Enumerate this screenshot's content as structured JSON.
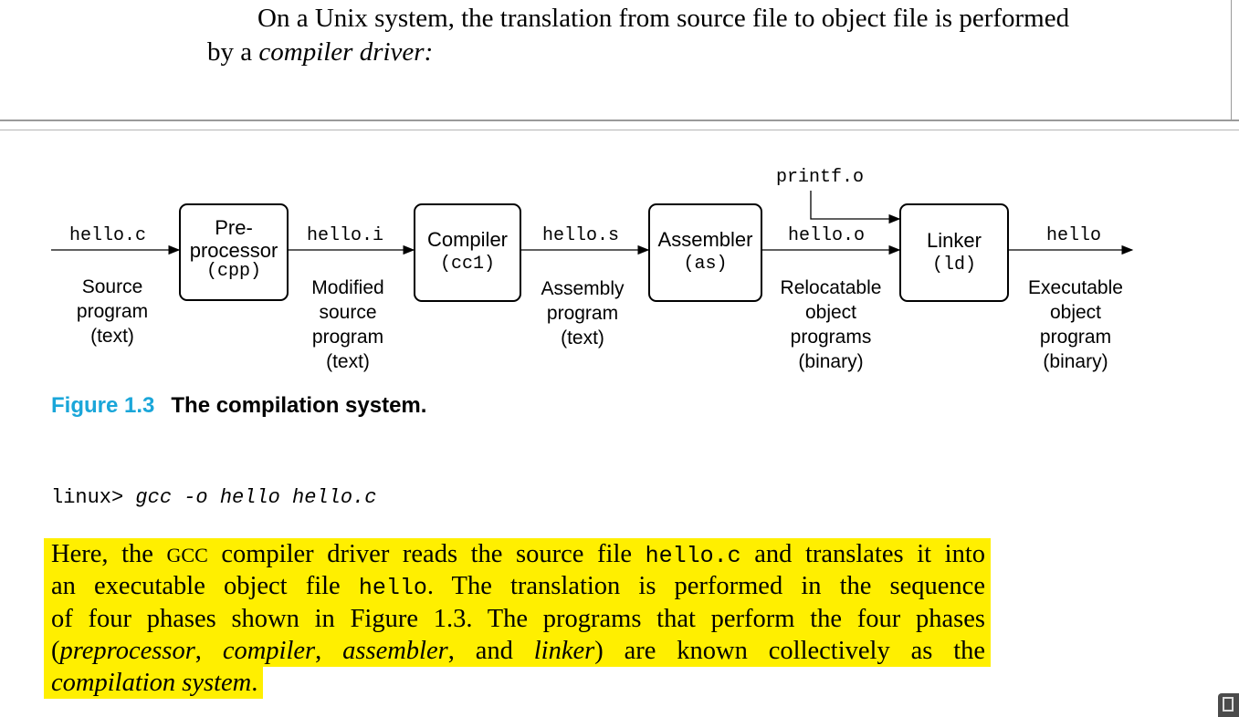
{
  "intro": {
    "line1": "On a Unix system, the translation from source file to object file is performed",
    "line2_prefix": "by a ",
    "line2_italic": "compiler driver:"
  },
  "figure": {
    "stages": [
      {
        "name": "Pre-",
        "name2": "processor",
        "tool": "(cpp)"
      },
      {
        "name": "Compiler",
        "tool": "(cc1)"
      },
      {
        "name": "Assembler",
        "tool": "(as)"
      },
      {
        "name": "Linker",
        "tool": "(ld)"
      }
    ],
    "files": [
      "hello.c",
      "hello.i",
      "hello.s",
      "hello.o",
      "hello"
    ],
    "extra_input": "printf.o",
    "descriptions": [
      [
        "Source",
        "program",
        "(text)"
      ],
      [
        "Modified",
        "source",
        "program",
        "(text)"
      ],
      [
        "Assembly",
        "program",
        "(text)"
      ],
      [
        "Relocatable",
        "object",
        "programs",
        "(binary)"
      ],
      [
        "Executable",
        "object",
        "program",
        "(binary)"
      ]
    ],
    "caption_number": "Figure 1.3",
    "caption_title": "The compilation system."
  },
  "command": {
    "prompt": "linux>",
    "typed": "gcc -o hello hello.c"
  },
  "paragraph": {
    "l1a": "Here, the ",
    "l1sc": "GCC",
    "l1b": " compiler driver reads the source file ",
    "l1code": "hello.c",
    "l1c": " and translates it into",
    "l2a": "an executable object file ",
    "l2code": "hello",
    "l2b": ". The translation is performed in the sequence",
    "l3": "of four phases shown in Figure 1.3. The programs that perform the four phases",
    "l4a": "(",
    "l4i1": "preprocessor",
    "l4b": ", ",
    "l4i2": "compiler",
    "l4c": ", ",
    "l4i3": "assembler",
    "l4d": ", and ",
    "l4i4": "linker",
    "l4e": ") are known collectively as the",
    "l5i": "compilation system",
    "l5e": "."
  },
  "colors": {
    "highlight": "#ffef00",
    "figure_number": "#1aa6d9"
  }
}
